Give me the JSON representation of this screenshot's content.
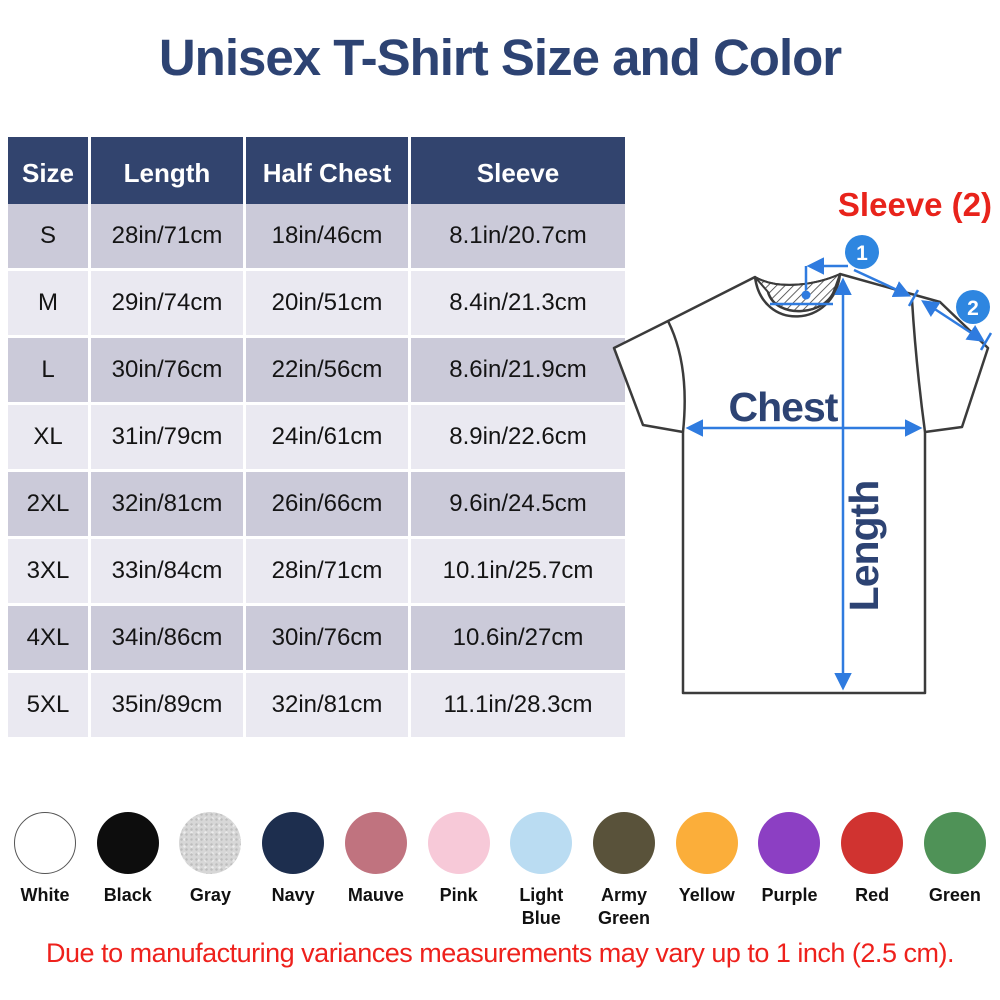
{
  "title": "Unisex T-Shirt Size and Color",
  "table": {
    "headers": [
      "Size",
      "Length",
      "Half Chest",
      "Sleeve"
    ],
    "rows": [
      {
        "size": "S",
        "length": "28in/71cm",
        "half_chest": "18in/46cm",
        "sleeve": "8.1in/20.7cm"
      },
      {
        "size": "M",
        "length": "29in/74cm",
        "half_chest": "20in/51cm",
        "sleeve": "8.4in/21.3cm"
      },
      {
        "size": "L",
        "length": "30in/76cm",
        "half_chest": "22in/56cm",
        "sleeve": "8.6in/21.9cm"
      },
      {
        "size": "XL",
        "length": "31in/79cm",
        "half_chest": "24in/61cm",
        "sleeve": "8.9in/22.6cm"
      },
      {
        "size": "2XL",
        "length": "32in/81cm",
        "half_chest": "26in/66cm",
        "sleeve": "9.6in/24.5cm"
      },
      {
        "size": "3XL",
        "length": "33in/84cm",
        "half_chest": "28in/71cm",
        "sleeve": "10.1in/25.7cm"
      },
      {
        "size": "4XL",
        "length": "34in/86cm",
        "half_chest": "30in/76cm",
        "sleeve": "10.6in/27cm"
      },
      {
        "size": "5XL",
        "length": "35in/89cm",
        "half_chest": "32in/81cm",
        "sleeve": "11.1in/28.3cm"
      }
    ]
  },
  "diagram": {
    "sleeve_label": "Sleeve (2)",
    "chest_label": "Chest",
    "length_label": "Length",
    "badge_1": "1",
    "badge_2": "2"
  },
  "colors": [
    {
      "name": "White",
      "hex": "#ffffff",
      "outlined": true
    },
    {
      "name": "Black",
      "hex": "#0d0d0d"
    },
    {
      "name": "Gray",
      "hex": "#d7d7d7",
      "heather": true
    },
    {
      "name": "Navy",
      "hex": "#1d2e4e"
    },
    {
      "name": "Mauve",
      "hex": "#c0737f"
    },
    {
      "name": "Pink",
      "hex": "#f7c9d8"
    },
    {
      "name": "Light Blue",
      "hex": "#badcf2"
    },
    {
      "name": "Army Green",
      "hex": "#59523a"
    },
    {
      "name": "Yellow",
      "hex": "#fbae3a"
    },
    {
      "name": "Purple",
      "hex": "#8c3fc3"
    },
    {
      "name": "Red",
      "hex": "#d03330"
    },
    {
      "name": "Green",
      "hex": "#4f9257"
    }
  ],
  "note": "Due to manufacturing variances measurements may vary up to 1 inch (2.5 cm).",
  "theme": {
    "navy": "#2d4373",
    "header_bg": "#32446e",
    "row_odd": "#cbcad9",
    "row_even": "#eae9f1",
    "red": "#e8231b",
    "blue": "#2f7bdf",
    "badge_blue": "#2e86e0"
  }
}
